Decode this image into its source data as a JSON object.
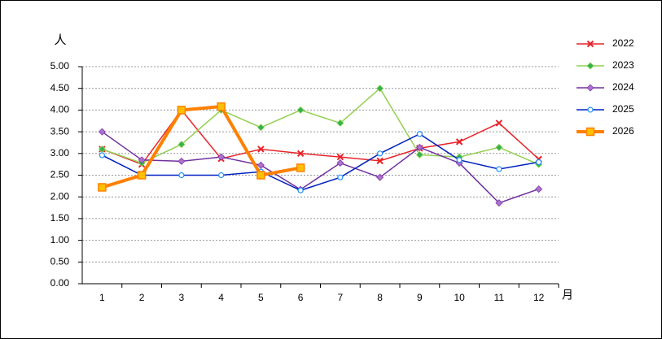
{
  "chart_data": {
    "type": "line",
    "y_label": "人",
    "x_label": "月",
    "categories": [
      "1",
      "2",
      "3",
      "4",
      "5",
      "6",
      "7",
      "8",
      "9",
      "10",
      "11",
      "12"
    ],
    "ylim": [
      0,
      5
    ],
    "yticks": [
      {
        "value": 0,
        "label": "0.00"
      },
      {
        "value": 0.5,
        "label": "0.50"
      },
      {
        "value": 1,
        "label": "1.00"
      },
      {
        "value": 1.5,
        "label": "1.50"
      },
      {
        "value": 2,
        "label": "2.00"
      },
      {
        "value": 2.5,
        "label": "2.50"
      },
      {
        "value": 3,
        "label": "3.00"
      },
      {
        "value": 3.5,
        "label": "3.50"
      },
      {
        "value": 4,
        "label": "4.00"
      },
      {
        "value": 4.5,
        "label": "4.50"
      },
      {
        "value": 5,
        "label": "5.00"
      }
    ],
    "grid": true,
    "legend": "right",
    "series": [
      {
        "name": "2022",
        "color": "#e8242a",
        "marker": "x",
        "values": [
          3.1,
          2.75,
          4.0,
          2.88,
          3.1,
          3.0,
          2.92,
          2.83,
          3.12,
          3.27,
          3.7,
          2.87
        ]
      },
      {
        "name": "2023",
        "color": "#92d050",
        "marker_color": "#33b44b",
        "marker": "diamond",
        "values": [
          3.1,
          2.78,
          3.21,
          4.0,
          3.6,
          4.0,
          3.7,
          4.5,
          2.97,
          2.92,
          3.14,
          2.75
        ]
      },
      {
        "name": "2024",
        "color": "#7030a0",
        "marker_color": "#b070d0",
        "marker": "diamond",
        "values": [
          3.5,
          2.85,
          2.82,
          2.92,
          2.73,
          2.17,
          2.78,
          2.45,
          3.14,
          2.78,
          1.86,
          2.18
        ]
      },
      {
        "name": "2025",
        "color": "#0020c0",
        "marker_color": "#2090ff",
        "marker": "circle",
        "values": [
          2.96,
          2.5,
          2.5,
          2.5,
          2.58,
          2.15,
          2.45,
          3.0,
          3.45,
          2.85,
          2.64,
          2.8
        ]
      },
      {
        "name": "2026",
        "color": "#ff8000",
        "marker_color": "#ffc000",
        "marker": "square",
        "line_width": 4,
        "values": [
          2.22,
          2.5,
          4.0,
          4.08,
          2.5,
          2.67,
          null,
          null,
          null,
          null,
          null,
          null
        ]
      }
    ]
  }
}
